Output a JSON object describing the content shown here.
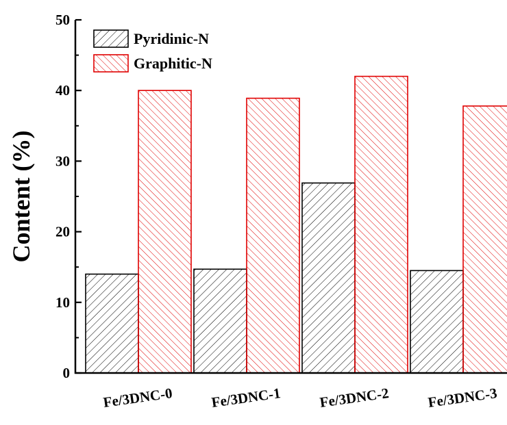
{
  "chart_data": {
    "type": "bar",
    "title": "",
    "xlabel": "",
    "ylabel": "Content (%)",
    "ylim": [
      0,
      50
    ],
    "yticks": [
      0,
      10,
      20,
      30,
      40,
      50
    ],
    "categories": [
      "Fe/3DNC-0",
      "Fe/3DNC-1",
      "Fe/3DNC-2",
      "Fe/3DNC-3"
    ],
    "series": [
      {
        "name": "Pyridinic-N",
        "values": [
          14.0,
          14.7,
          26.9,
          14.5
        ],
        "edge_color": "#000000",
        "hatch_color": "#000000"
      },
      {
        "name": "Graphitic-N",
        "values": [
          40.0,
          38.9,
          42.0,
          37.8
        ],
        "edge_color": "#e00000",
        "hatch_color": "#e00000"
      }
    ],
    "legend_position": "top-left",
    "grid": false
  }
}
